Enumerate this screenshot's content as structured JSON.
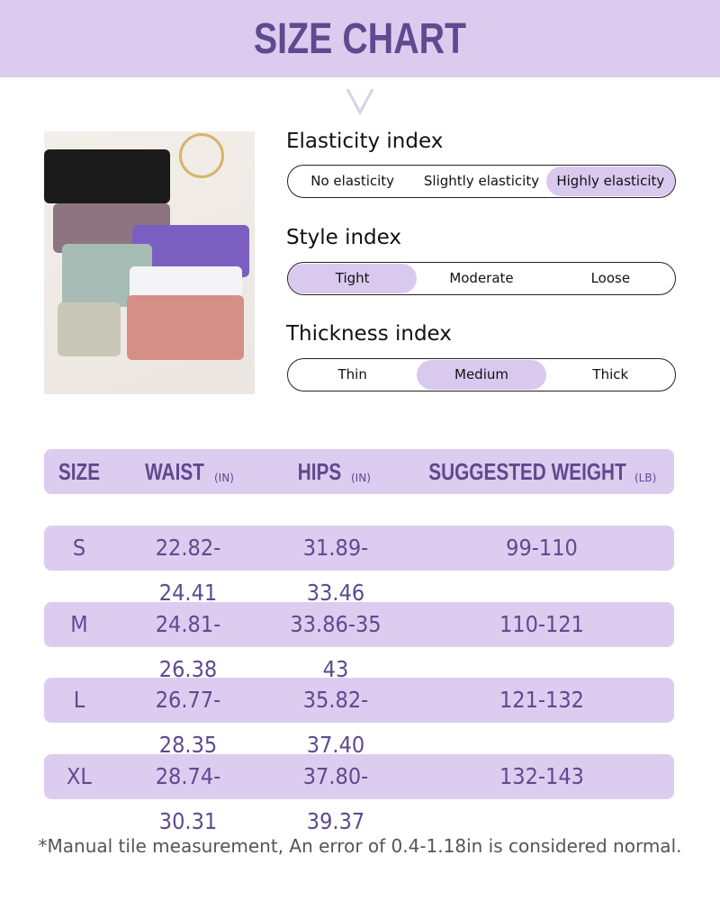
{
  "header": {
    "title": "SIZE CHART"
  },
  "indices": [
    {
      "title": "Elasticity index",
      "options": [
        "No elasticity",
        "Slightly elasticity",
        "Highly elasticity"
      ],
      "selected": 2
    },
    {
      "title": "Style index",
      "options": [
        "Tight",
        "Moderate",
        "Loose"
      ],
      "selected": 0
    },
    {
      "title": "Thickness index",
      "options": [
        "Thin",
        "Medium",
        "Thick"
      ],
      "selected": 1
    }
  ],
  "table": {
    "headers": {
      "size": "SIZE",
      "waist": "WAIST",
      "waist_unit": "(IN)",
      "hips": "HIPS",
      "hips_unit": "(IN)",
      "weight": "SUGGESTED WEIGHT",
      "weight_unit": "(LB)"
    },
    "rows": [
      {
        "size": "S",
        "waist": "22.82-24.41",
        "hips": "31.89-33.46",
        "weight": "99-110"
      },
      {
        "size": "M",
        "waist": "24.81-26.38",
        "hips": "33.86-35 43",
        "weight": "110-121"
      },
      {
        "size": "L",
        "waist": "26.77-28.35",
        "hips": "35.82-37.40",
        "weight": "121-132"
      },
      {
        "size": "XL",
        "waist": "28.74-30.31",
        "hips": "37.80-39.37",
        "weight": "132-143"
      }
    ]
  },
  "note": "*Manual tile measurement, An error of 0.4-1.18in is considered normal.",
  "colors": {
    "banner": "#dccbef",
    "text_accent": "#5e4a8e",
    "selected_pill": "#d9c9ef"
  }
}
